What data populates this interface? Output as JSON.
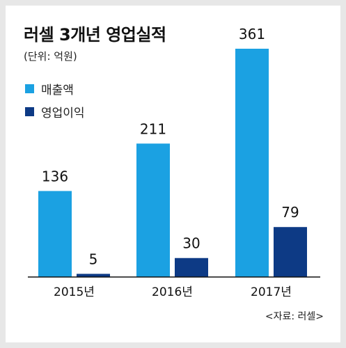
{
  "chart_data": {
    "type": "bar",
    "title": "러셀 3개년 영업실적",
    "unit_label": "(단위: 억원)",
    "source": "<자료: 러셀>",
    "categories": [
      "2015년",
      "2016년",
      "2017년"
    ],
    "series": [
      {
        "name": "매출액",
        "values": [
          136,
          211,
          361
        ],
        "color": "#1ba1e2"
      },
      {
        "name": "영업이익",
        "values": [
          5,
          30,
          79
        ],
        "color": "#0d3a85"
      }
    ],
    "data_labels": [
      [
        "136",
        "211",
        "361"
      ],
      [
        "5",
        "30",
        "79"
      ]
    ],
    "ylim": [
      0,
      361
    ],
    "grid": false,
    "legend_position": "top-left",
    "axis_color": "#111111"
  }
}
